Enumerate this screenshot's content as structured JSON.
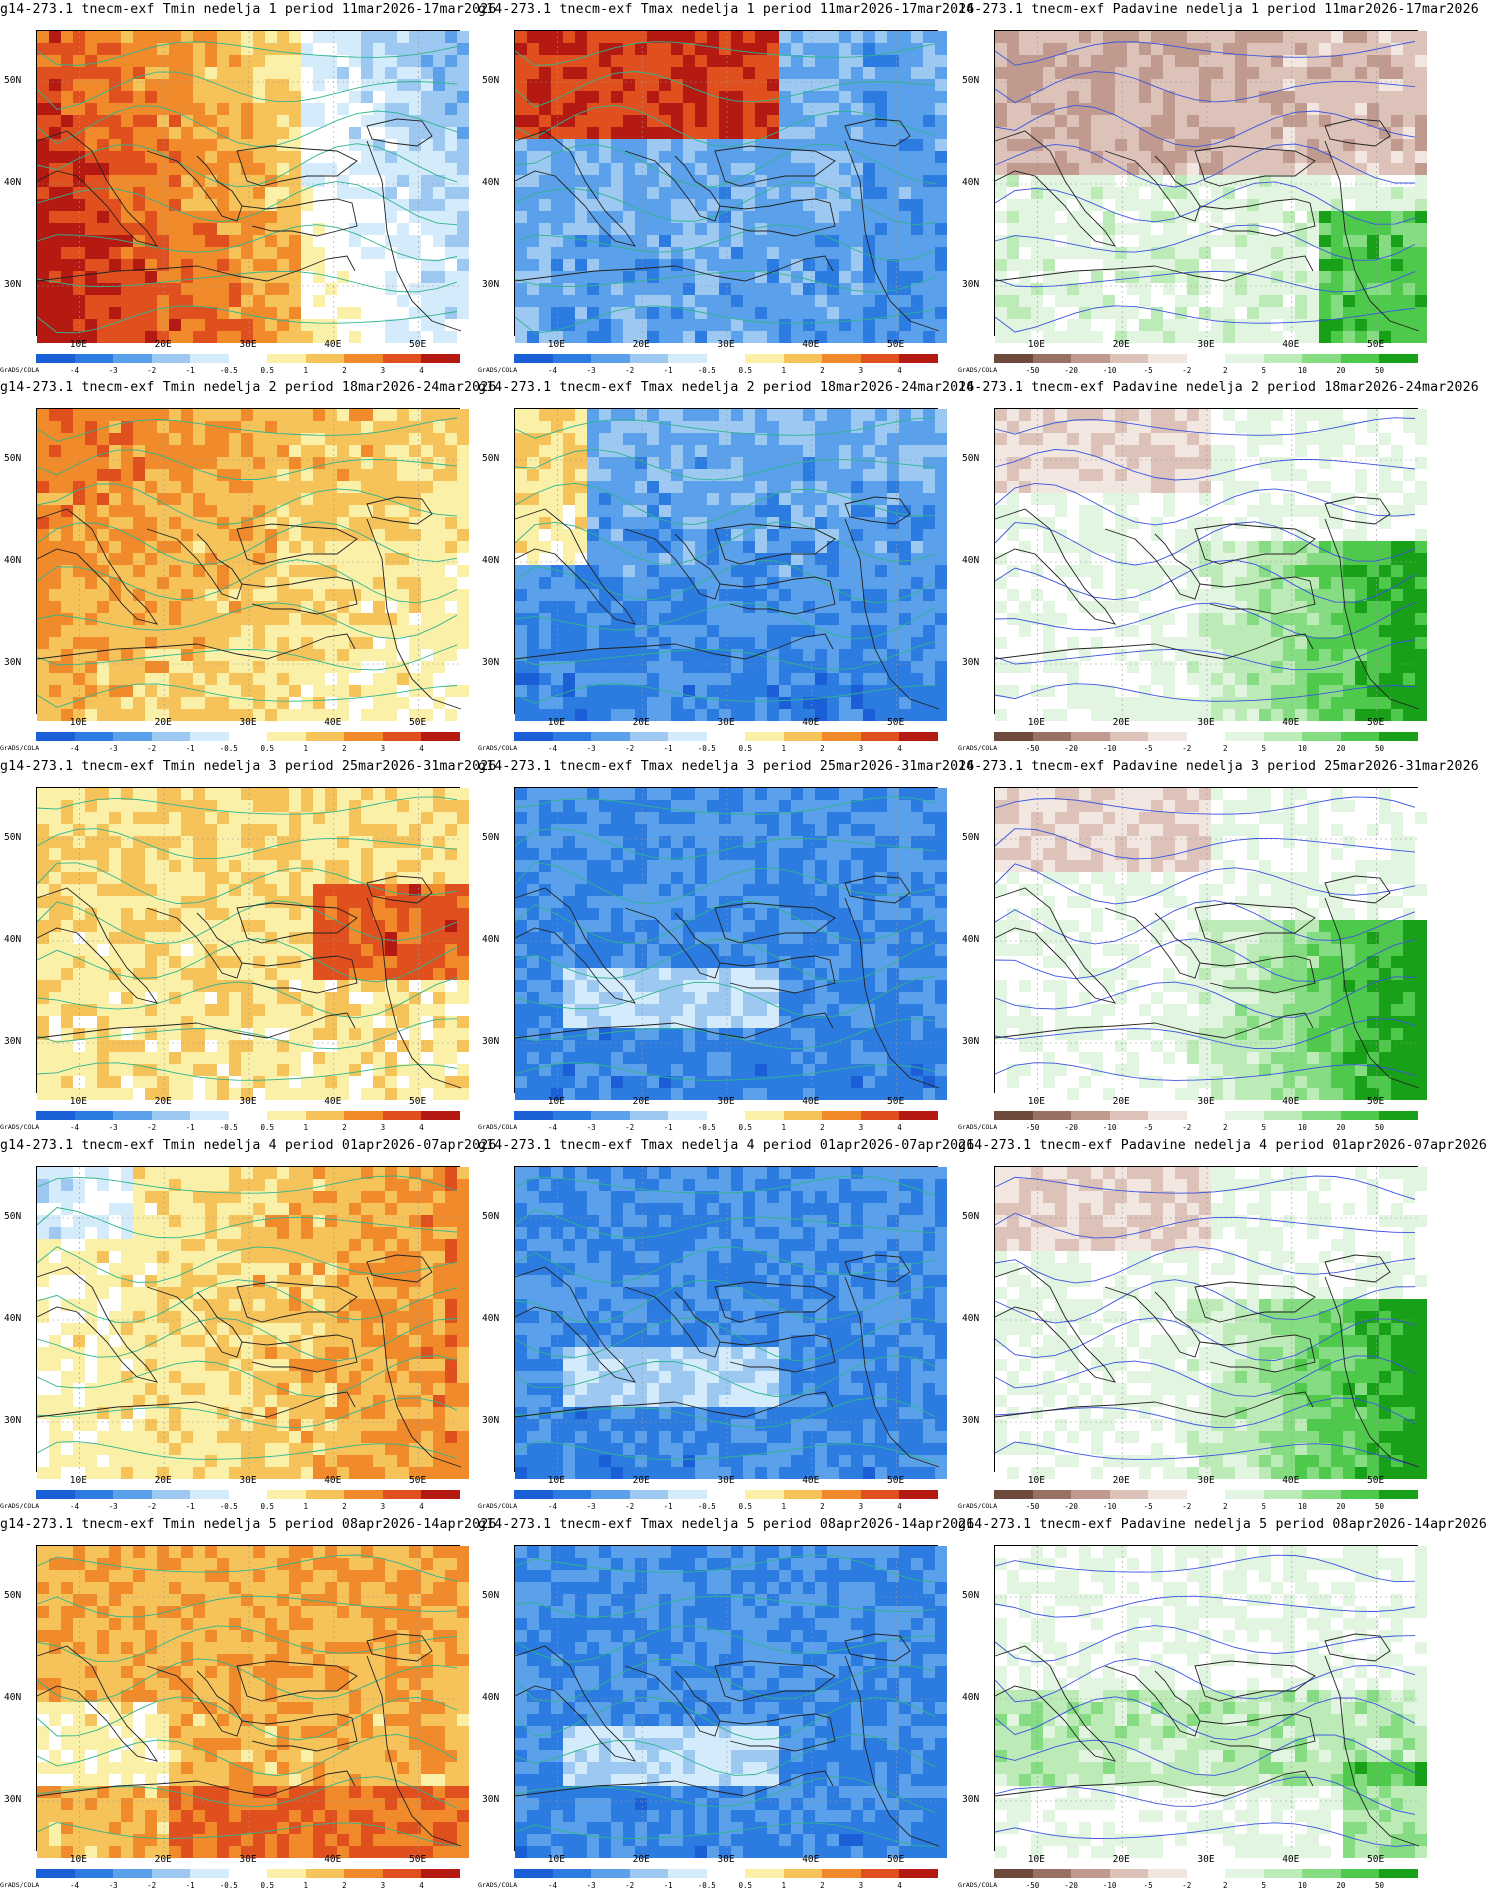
{
  "panels": [
    {
      "title": "g14-273.1 tnecm-exf Tmin nedelja 1 period 11mar2026-17mar2026",
      "kind": "tmin"
    },
    {
      "title": "g14-273.1 tnecm-exf Tmax nedelja 1 period 11mar2026-17mar2026",
      "kind": "tmax"
    },
    {
      "title": "14-273.1 tnecm-exf Padavine nedelja 1 period 11mar2026-17mar2026",
      "kind": "prec"
    },
    {
      "title": "g14-273.1 tnecm-exf Tmin nedelja 2 period 18mar2026-24mar2026",
      "kind": "tmin"
    },
    {
      "title": "g14-273.1 tnecm-exf Tmax nedelja 2 period 18mar2026-24mar2026",
      "kind": "tmax"
    },
    {
      "title": "14-273.1 tnecm-exf Padavine nedelja 2 period 18mar2026-24mar2026",
      "kind": "prec"
    },
    {
      "title": "g14-273.1 tnecm-exf Tmin nedelja 3 period 25mar2026-31mar2026",
      "kind": "tmin"
    },
    {
      "title": "g14-273.1 tnecm-exf Tmax nedelja 3 period 25mar2026-31mar2026",
      "kind": "tmax"
    },
    {
      "title": "14-273.1 tnecm-exf Padavine nedelja 3 period 25mar2026-31mar2026",
      "kind": "prec"
    },
    {
      "title": "g14-273.1 tnecm-exf Tmin nedelja 4 period 01apr2026-07apr2026",
      "kind": "tmin"
    },
    {
      "title": "g14-273.1 tnecm-exf Tmax nedelja 4 period 01apr2026-07apr2026",
      "kind": "tmax"
    },
    {
      "title": "g14-273.1 tnecm-exf Padavine nedelja 4 period 01apr2026-07apr2026",
      "kind": "prec"
    },
    {
      "title": "g14-273.1 tnecm-exf Tmin nedelja 5 period 08apr2026-14apr2026",
      "kind": "tmin"
    },
    {
      "title": "g14-273.1 tnecm-exf Tmax nedelja 5 period 08apr2026-14apr2026",
      "kind": "tmax"
    },
    {
      "title": "g14-273.1 tnecm-exf Padavine nedelja 5 period 08apr2026-14apr2026",
      "kind": "prec"
    }
  ],
  "lat_labels": [
    "50N",
    "40N",
    "30N"
  ],
  "lon_labels": [
    "10E",
    "20E",
    "30E",
    "40E",
    "50E"
  ],
  "credit": "GrADS/COLA",
  "temp_scale": {
    "labels": [
      "-4",
      "-3",
      "-2",
      "-1",
      "-0.5",
      "0.5",
      "1",
      "2",
      "3",
      "4"
    ],
    "colors": [
      "#1a5fd6",
      "#2b7be0",
      "#5aa0ea",
      "#9cc8f2",
      "#d4ebfb",
      "#ffffff",
      "#fbf0a8",
      "#f6c25a",
      "#f08a2a",
      "#e0501e",
      "#b51a12"
    ]
  },
  "prec_scale": {
    "labels": [
      "-50",
      "-20",
      "-10",
      "-5",
      "-2",
      "2",
      "5",
      "10",
      "20",
      "50"
    ],
    "colors": [
      "#6e4a3c",
      "#987064",
      "#c09a8e",
      "#dcc2b8",
      "#f2e6e0",
      "#ffffff",
      "#e2f5e0",
      "#bdebb8",
      "#86dc82",
      "#4ec94c",
      "#18a018"
    ]
  },
  "weeks": [
    {
      "tmin": "warm-west",
      "tmax": "warm-north",
      "prec": "dry-north"
    },
    {
      "tmin": "warm-all",
      "tmax": "cool",
      "prec": "wet-east"
    },
    {
      "tmin": "mild",
      "tmax": "cold",
      "prec": "wet-east"
    },
    {
      "tmin": "mild-east",
      "tmax": "cold",
      "prec": "wet-east"
    },
    {
      "tmin": "warm-mixed",
      "tmax": "cold",
      "prec": "wet-mixed"
    }
  ]
}
